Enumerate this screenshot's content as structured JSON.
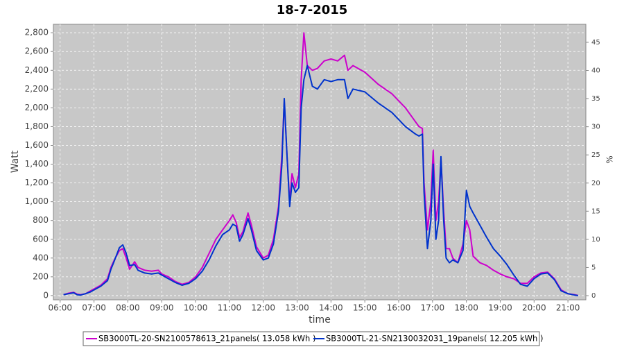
{
  "chart_data": {
    "type": "line",
    "title": "18-7-2015",
    "x_label": "time",
    "y_label": "Watt",
    "y2_label": "%",
    "grid": true,
    "legend": "bottom",
    "x": [
      6.1,
      6.25,
      6.4,
      6.5,
      6.6,
      6.75,
      6.9,
      7.0,
      7.2,
      7.4,
      7.5,
      7.6,
      7.75,
      7.85,
      7.95,
      8.05,
      8.2,
      8.3,
      8.5,
      8.7,
      8.9,
      9.0,
      9.2,
      9.4,
      9.6,
      9.8,
      10.0,
      10.2,
      10.4,
      10.6,
      10.8,
      11.0,
      11.1,
      11.2,
      11.3,
      11.4,
      11.55,
      11.65,
      11.8,
      12.0,
      12.15,
      12.3,
      12.45,
      12.55,
      12.62,
      12.7,
      12.78,
      12.85,
      12.95,
      13.05,
      13.12,
      13.2,
      13.3,
      13.45,
      13.6,
      13.8,
      14.0,
      14.2,
      14.4,
      14.5,
      14.65,
      15.0,
      15.4,
      15.8,
      16.2,
      16.5,
      16.6,
      16.7,
      16.75,
      16.85,
      16.95,
      17.02,
      17.1,
      17.18,
      17.25,
      17.33,
      17.4,
      17.5,
      17.6,
      17.75,
      17.9,
      18.0,
      18.1,
      18.2,
      18.4,
      18.6,
      18.8,
      19.0,
      19.2,
      19.4,
      19.6,
      19.8,
      20.0,
      20.2,
      20.4,
      20.6,
      20.8,
      21.0,
      21.2,
      21.3
    ],
    "series": [
      {
        "name": "SB3000TL-20-SN2100578613_21panels( 13.058 kWh )",
        "color": "#cc00cc",
        "values": [
          10,
          25,
          35,
          15,
          10,
          20,
          50,
          70,
          110,
          180,
          300,
          380,
          480,
          500,
          400,
          280,
          360,
          300,
          270,
          260,
          270,
          230,
          200,
          150,
          120,
          140,
          200,
          300,
          450,
          600,
          700,
          800,
          860,
          780,
          620,
          680,
          880,
          750,
          520,
          400,
          430,
          600,
          950,
          1500,
          2070,
          1500,
          1000,
          1300,
          1150,
          1300,
          2300,
          2800,
          2450,
          2400,
          2420,
          2500,
          2520,
          2500,
          2560,
          2400,
          2450,
          2380,
          2250,
          2150,
          2000,
          1850,
          1800,
          1780,
          1200,
          700,
          1000,
          1550,
          800,
          1000,
          1450,
          900,
          500,
          500,
          400,
          350,
          550,
          800,
          700,
          420,
          350,
          320,
          270,
          230,
          200,
          180,
          130,
          130,
          200,
          240,
          250,
          180,
          60,
          20,
          10,
          0
        ]
      },
      {
        "name": "SB3000TL-21-SN2130032031_19panels( 12.205 kWh )",
        "color": "#0033cc",
        "values": [
          10,
          20,
          30,
          10,
          5,
          20,
          40,
          60,
          100,
          160,
          280,
          370,
          510,
          540,
          450,
          320,
          330,
          270,
          240,
          230,
          240,
          220,
          180,
          140,
          110,
          130,
          180,
          260,
          380,
          530,
          650,
          700,
          760,
          740,
          580,
          650,
          820,
          700,
          480,
          380,
          400,
          550,
          900,
          1400,
          2100,
          1500,
          950,
          1200,
          1100,
          1150,
          2000,
          2300,
          2450,
          2230,
          2200,
          2300,
          2280,
          2300,
          2300,
          2100,
          2200,
          2170,
          2050,
          1950,
          1800,
          1720,
          1700,
          1720,
          1100,
          500,
          800,
          1400,
          600,
          800,
          1480,
          800,
          400,
          350,
          380,
          350,
          480,
          1120,
          950,
          880,
          750,
          620,
          500,
          420,
          330,
          220,
          120,
          100,
          180,
          230,
          240,
          170,
          50,
          20,
          5,
          0
        ]
      }
    ],
    "xlim": [
      5.8,
      21.53
    ],
    "xticks": [
      {
        "value": 6,
        "label": "06:00"
      },
      {
        "value": 7,
        "label": "07:00"
      },
      {
        "value": 8,
        "label": "08:00"
      },
      {
        "value": 9,
        "label": "09:00"
      },
      {
        "value": 10,
        "label": "10:00"
      },
      {
        "value": 11,
        "label": "11:00"
      },
      {
        "value": 12,
        "label": "12:00"
      },
      {
        "value": 13,
        "label": "13:00"
      },
      {
        "value": 14,
        "label": "14:00"
      },
      {
        "value": 15,
        "label": "15:00"
      },
      {
        "value": 16,
        "label": "16:00"
      },
      {
        "value": 17,
        "label": "17:00"
      },
      {
        "value": 18,
        "label": "18:00"
      },
      {
        "value": 19,
        "label": "19:00"
      },
      {
        "value": 20,
        "label": "20:00"
      },
      {
        "value": 21,
        "label": "21:00"
      }
    ],
    "ylim": [
      -45,
      2890
    ],
    "yticks": [
      0,
      200,
      400,
      600,
      800,
      {
        "value": 1000,
        "label": "1,000"
      },
      {
        "value": 1200,
        "label": "1,200"
      },
      {
        "value": 1400,
        "label": "1,400"
      },
      {
        "value": 1600,
        "label": "1,600"
      },
      {
        "value": 1800,
        "label": "1,800"
      },
      {
        "value": 2000,
        "label": "2,000"
      },
      {
        "value": 2200,
        "label": "2,200"
      },
      {
        "value": 2400,
        "label": "2,400"
      },
      {
        "value": 2600,
        "label": "2,600"
      },
      {
        "value": 2800,
        "label": "2,800"
      }
    ],
    "y2lim": [
      -0.74,
      48.2
    ],
    "y2ticks": [
      0,
      5,
      10,
      15,
      20,
      25,
      30,
      35,
      40,
      45
    ]
  }
}
